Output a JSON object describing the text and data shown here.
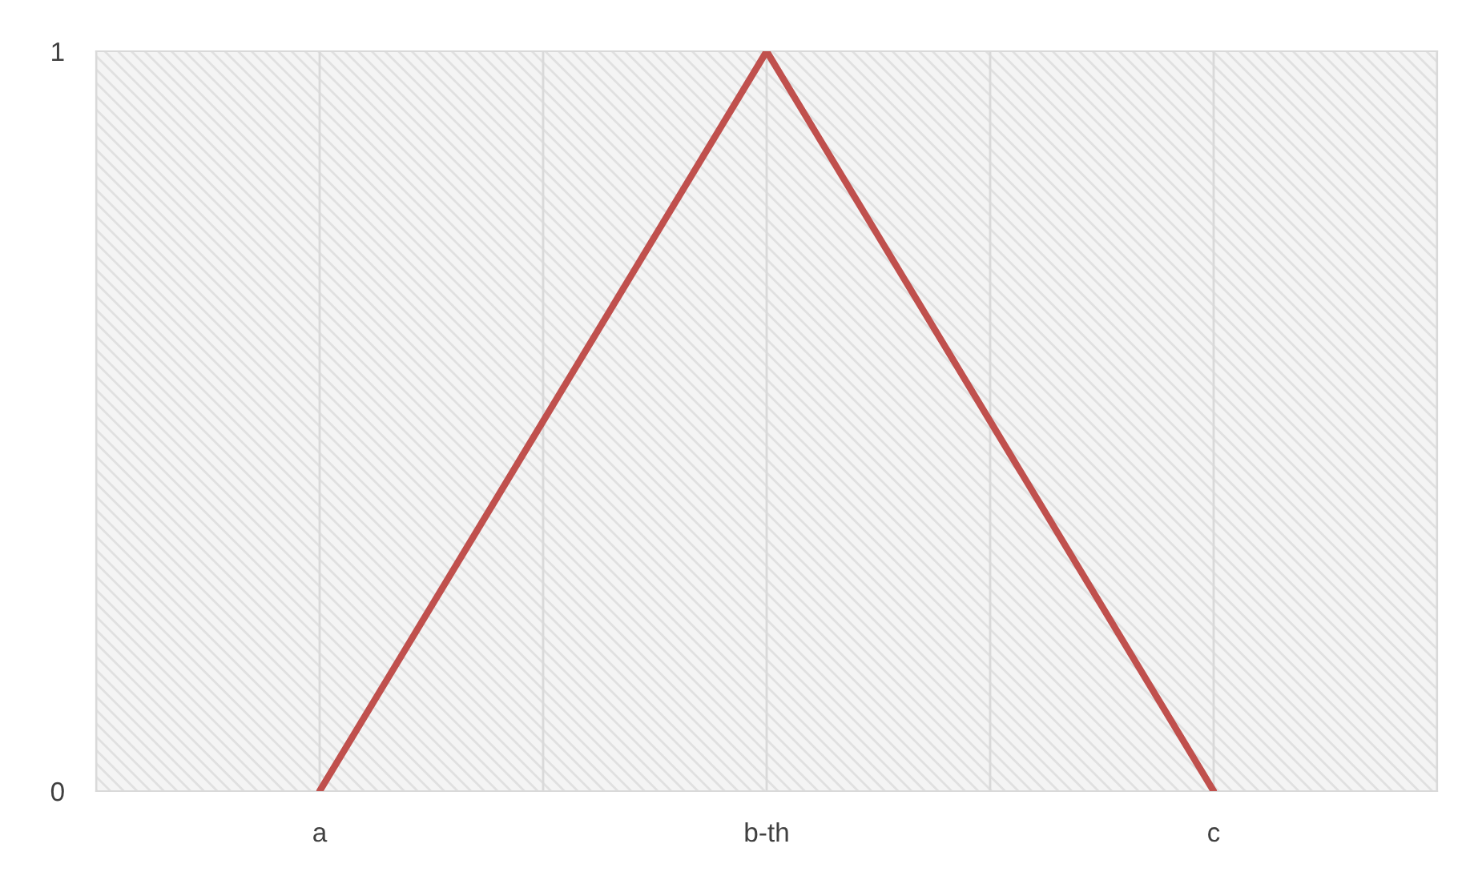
{
  "chart_data": {
    "type": "line",
    "categories": [
      null,
      "a",
      null,
      "b-th",
      null,
      "c",
      null
    ],
    "series": [
      {
        "color": "#c0504d",
        "values": [
          null,
          0,
          0.5,
          1,
          0.5,
          0,
          null
        ]
      }
    ],
    "ylim": [
      0,
      1
    ],
    "yticks": [
      0,
      1
    ],
    "grid": "x",
    "legend": false,
    "marker": "none",
    "line_style": "solid"
  }
}
